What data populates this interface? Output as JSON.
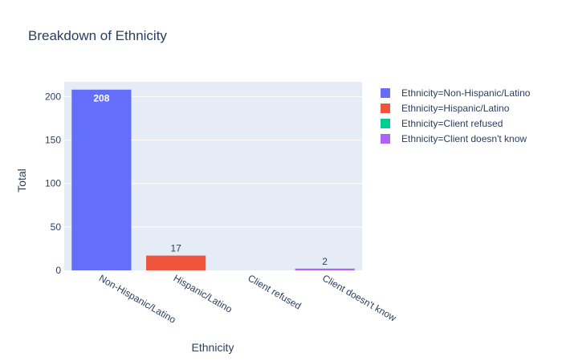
{
  "chart_data": {
    "type": "bar",
    "title": "Breakdown of Ethnicity",
    "xlabel": "Ethnicity",
    "ylabel": "Total",
    "categories": [
      "Non-Hispanic/Latino",
      "Hispanic/Latino",
      "Client refused",
      "Client doesn't know"
    ],
    "values": [
      208,
      17,
      0,
      2
    ],
    "data_labels": [
      "208",
      "17",
      "",
      "2"
    ],
    "ylim": [
      0,
      217
    ],
    "yticks": [
      0,
      50,
      100,
      150,
      200
    ],
    "grid": true,
    "legend_position": "top-right",
    "legend": [
      "Ethnicity=Non-Hispanic/Latino",
      "Ethnicity=Hispanic/Latino",
      "Ethnicity=Client refused",
      "Ethnicity=Client doesn't know"
    ],
    "colors": [
      "#636efa",
      "#ef553b",
      "#00cc96",
      "#ab63fa"
    ],
    "plot_background": "#e5ecf6"
  }
}
